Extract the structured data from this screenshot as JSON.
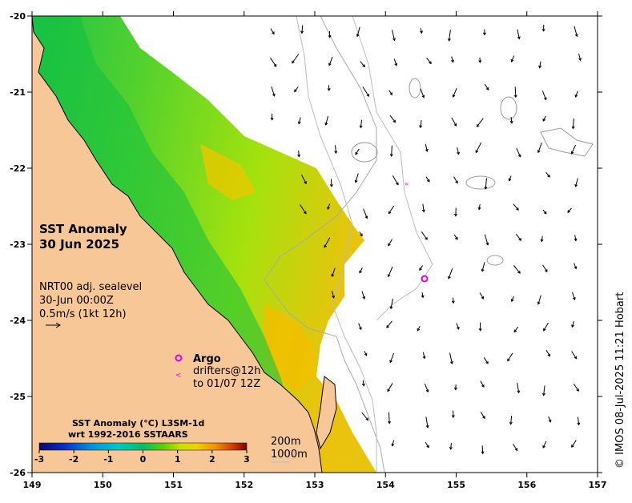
{
  "map": {
    "title_line1": "SST Anomaly",
    "title_line2": "30 Jun 2025",
    "current_info": [
      "NRT00 adj. sealevel",
      "30-Jun 00:00Z",
      "0.5m/s (1kt 12h)"
    ],
    "argo_label": "Argo",
    "drifter_label_line1": "drifters@12h",
    "drifter_label_line2": "to 01/07 12Z",
    "argo_symbol": "o",
    "drifter_symbol": "<",
    "credit": "© IMOS 08-Jul-2025 11:21 Hobart",
    "x_ticks": [
      "149",
      "150",
      "151",
      "152",
      "153",
      "154",
      "155",
      "156",
      "157"
    ],
    "y_ticks": [
      "-20",
      "-21",
      "-22",
      "-23",
      "-24",
      "-25",
      "-26"
    ],
    "colors": {
      "land": "#f8c797",
      "ocean": "#ffffff",
      "argo": "#e000e0",
      "contour": "#999999"
    }
  },
  "colorbar": {
    "title_line1": "SST Anomaly (°C) L3SM-1d",
    "title_line2": "wrt 1992-2016 SSTAARS",
    "ticks": [
      "-3",
      "-2",
      "-1",
      "0",
      "1",
      "2",
      "3"
    ],
    "colors": [
      "#08086e",
      "#0030c8",
      "#0090e0",
      "#00c8c8",
      "#00c060",
      "#30d000",
      "#a0e000",
      "#f0e000",
      "#f0a000",
      "#e06000",
      "#c02000",
      "#800000"
    ]
  },
  "isobaths": {
    "label_200": "200m",
    "label_1000": "1000m"
  }
}
